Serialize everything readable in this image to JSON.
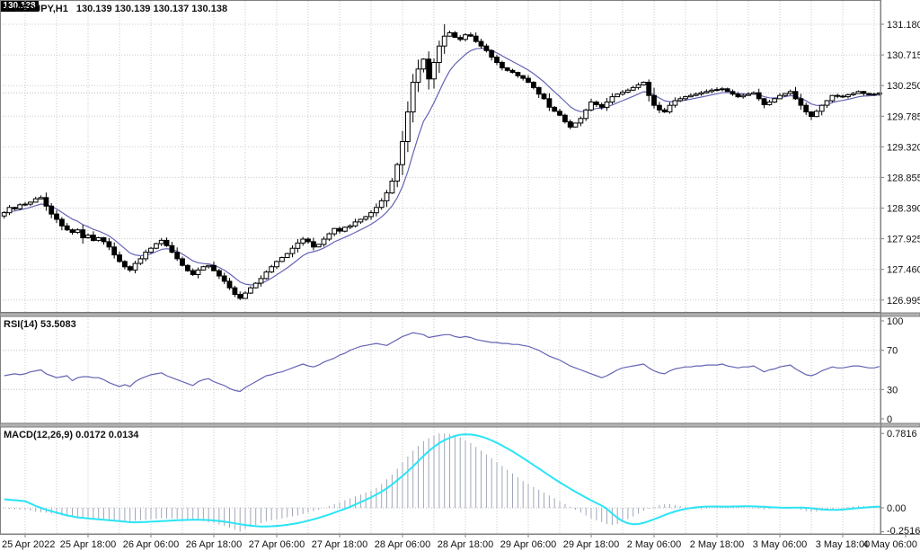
{
  "header": {
    "dropdown_icon": "▼",
    "symbol": "USDJPY,H1",
    "quote": "130.139 130.139 130.137 130.138"
  },
  "indicators": {
    "rsi_label": "RSI(14) 53.5083",
    "macd_label": "MACD(12,26,9) 0.0172 0.0134"
  },
  "price_tag": "130.138",
  "axes": {
    "price_labels": [
      "131.180",
      "130.715",
      "130.250",
      "129.785",
      "129.320",
      "128.855",
      "128.390",
      "127.925",
      "127.460",
      "126.995"
    ],
    "rsi_labels": [
      "100",
      "70",
      "30",
      "0"
    ],
    "macd_labels": [
      "0.7816",
      "0.00",
      "-0.2516"
    ],
    "time_labels": [
      "25 Apr 2022",
      "25 Apr 18:00",
      "26 Apr 06:00",
      "26 Apr 18:00",
      "27 Apr 06:00",
      "27 Apr 18:00",
      "28 Apr 06:00",
      "28 Apr 18:00",
      "29 Apr 06:00",
      "29 Apr 18:00",
      "2 May 06:00",
      "2 May 18:00",
      "3 May 06:00",
      "3 May 18:00",
      "4 May 06:00"
    ]
  },
  "colors": {
    "background": "#ffffff",
    "grid": "#c9c9c9",
    "level_line": "#bdbdbd",
    "frame": "#808080",
    "separator": "#b3b3b3",
    "separator_edge": "#6e6e6e",
    "candle_outline": "#000000",
    "candle_bull": "#ffffff",
    "candle_bear": "#000000",
    "ma_line": "#6464b4",
    "rsi_line": "#6464b4",
    "macd_hist": "#a0a7b8",
    "macd_signal": "#2ae4f5",
    "axis_text": "#111111",
    "tag_bg": "#000000",
    "tag_fg": "#ffffff"
  },
  "chart_data": {
    "type": "candlestick",
    "symbol": "USDJPY",
    "timeframe": "H1",
    "ohlc_current": {
      "open": 130.139,
      "high": 130.139,
      "low": 130.137,
      "close": 130.138
    },
    "current_price": 130.138,
    "price_ticks": [
      131.18,
      130.715,
      130.25,
      129.785,
      129.32,
      128.855,
      128.39,
      127.925,
      127.46,
      126.995
    ],
    "price_range": [
      126.995,
      131.18
    ],
    "time_tick_first_candle": 4,
    "time_tick_candle_interval": 12,
    "closes": [
      128.32,
      128.4,
      128.38,
      128.44,
      128.45,
      128.48,
      128.53,
      128.55,
      128.42,
      128.3,
      128.22,
      128.12,
      128.06,
      128.02,
      128.06,
      127.94,
      127.98,
      127.9,
      127.94,
      127.88,
      127.8,
      127.68,
      127.58,
      127.5,
      127.45,
      127.55,
      127.62,
      127.72,
      127.78,
      127.85,
      127.9,
      127.82,
      127.72,
      127.62,
      127.52,
      127.44,
      127.38,
      127.45,
      127.5,
      127.52,
      127.44,
      127.36,
      127.28,
      127.18,
      127.08,
      127.02,
      127.1,
      127.18,
      127.25,
      127.32,
      127.42,
      127.5,
      127.58,
      127.64,
      127.7,
      127.78,
      127.86,
      127.92,
      127.88,
      127.8,
      127.84,
      127.92,
      128.0,
      128.08,
      128.04,
      128.1,
      128.12,
      128.18,
      128.22,
      128.26,
      128.32,
      128.4,
      128.5,
      128.62,
      128.8,
      129.05,
      129.4,
      129.85,
      130.3,
      130.5,
      130.65,
      130.35,
      130.6,
      130.85,
      131.0,
      131.05,
      130.98,
      130.95,
      131.02,
      131.0,
      130.92,
      130.85,
      130.78,
      130.68,
      130.6,
      130.52,
      130.48,
      130.45,
      130.4,
      130.36,
      130.3,
      130.22,
      130.12,
      130.05,
      129.92,
      129.86,
      129.8,
      129.7,
      129.62,
      129.68,
      129.75,
      129.88,
      130.0,
      129.96,
      129.92,
      130.0,
      130.08,
      130.12,
      130.15,
      130.18,
      130.22,
      130.26,
      130.3,
      130.1,
      129.95,
      129.88,
      129.85,
      129.95,
      130.02,
      130.05,
      130.08,
      130.1,
      130.12,
      130.14,
      130.16,
      130.18,
      130.19,
      130.2,
      130.16,
      130.12,
      130.08,
      130.1,
      130.12,
      130.14,
      130.05,
      129.96,
      130.0,
      130.05,
      130.1,
      130.13,
      130.16,
      130.05,
      129.95,
      129.85,
      129.78,
      129.86,
      129.95,
      130.02,
      130.1,
      130.09,
      130.08,
      130.11,
      130.13,
      130.16,
      130.13,
      130.11,
      130.12,
      130.138
    ],
    "extremes": {
      "high_index": 84,
      "high": 131.18,
      "low_index": 45,
      "low": 126.995
    },
    "ma": {
      "type": "ema",
      "period": 9
    },
    "rsi": {
      "period": 14,
      "current": 53.5083,
      "levels": [
        70,
        30
      ],
      "scale_ticks": [
        100,
        70,
        30,
        0
      ],
      "values": [
        44,
        45,
        46,
        45,
        46,
        48,
        49,
        50,
        46,
        44,
        42,
        43,
        44,
        39,
        42,
        43,
        43,
        42,
        42,
        40,
        37,
        35,
        33,
        35,
        33,
        38,
        41,
        43,
        45,
        46,
        47,
        44,
        42,
        40,
        38,
        36,
        34,
        38,
        40,
        41,
        38,
        36,
        34,
        31,
        29,
        28,
        32,
        35,
        38,
        41,
        44,
        45,
        47,
        48,
        50,
        52,
        54,
        56,
        54,
        53,
        55,
        58,
        60,
        62,
        65,
        67,
        70,
        72,
        74,
        75,
        76,
        77,
        76,
        75,
        78,
        81,
        84,
        86,
        88,
        87,
        86,
        83,
        84,
        85,
        86,
        86,
        84,
        83,
        84,
        83,
        81,
        80,
        79,
        78,
        78,
        77,
        77,
        76,
        76,
        75,
        74,
        72,
        70,
        67,
        64,
        62,
        60,
        57,
        54,
        52,
        50,
        48,
        46,
        44,
        42,
        44,
        47,
        50,
        52,
        53,
        54,
        55,
        56,
        52,
        49,
        47,
        46,
        49,
        51,
        52,
        53,
        53,
        54,
        54,
        55,
        55,
        55,
        56,
        54,
        53,
        52,
        53,
        53,
        54,
        51,
        48,
        50,
        51,
        53,
        54,
        55,
        51,
        48,
        45,
        44,
        46,
        49,
        51,
        53,
        52,
        52,
        53,
        54,
        54,
        53,
        52,
        52,
        53.5
      ]
    },
    "macd": {
      "fast": 12,
      "slow": 26,
      "signal_period": 9,
      "current_main": 0.0172,
      "current_signal": 0.0134,
      "scale_ticks": [
        0.7816,
        0.0,
        -0.2516
      ],
      "main": [
        -0.005,
        -0.01,
        -0.015,
        -0.018,
        -0.02,
        -0.03,
        -0.04,
        -0.045,
        -0.05,
        -0.06,
        -0.07,
        -0.08,
        -0.09,
        -0.095,
        -0.1,
        -0.1,
        -0.1,
        -0.11,
        -0.11,
        -0.115,
        -0.12,
        -0.13,
        -0.135,
        -0.14,
        -0.14,
        -0.135,
        -0.13,
        -0.125,
        -0.12,
        -0.115,
        -0.11,
        -0.11,
        -0.11,
        -0.115,
        -0.12,
        -0.125,
        -0.13,
        -0.135,
        -0.14,
        -0.15,
        -0.16,
        -0.175,
        -0.19,
        -0.21,
        -0.23,
        -0.25,
        -0.22,
        -0.2,
        -0.18,
        -0.16,
        -0.14,
        -0.13,
        -0.12,
        -0.11,
        -0.1,
        -0.09,
        -0.08,
        -0.065,
        -0.05,
        -0.035,
        -0.02,
        0.0,
        0.02,
        0.04,
        0.06,
        0.08,
        0.1,
        0.12,
        0.14,
        0.16,
        0.18,
        0.21,
        0.25,
        0.3,
        0.35,
        0.41,
        0.48,
        0.54,
        0.6,
        0.65,
        0.7,
        0.73,
        0.76,
        0.78,
        0.78,
        0.77,
        0.755,
        0.74,
        0.71,
        0.68,
        0.64,
        0.6,
        0.56,
        0.52,
        0.48,
        0.44,
        0.4,
        0.36,
        0.32,
        0.28,
        0.25,
        0.22,
        0.19,
        0.16,
        0.13,
        0.1,
        0.07,
        0.04,
        0.01,
        -0.02,
        -0.05,
        -0.08,
        -0.11,
        -0.13,
        -0.15,
        -0.17,
        -0.18,
        -0.17,
        -0.15,
        -0.12,
        -0.09,
        -0.06,
        -0.03,
        -0.01,
        0.01,
        0.03,
        0.04,
        0.04,
        0.03,
        0.02,
        0.01,
        0.0,
        -0.01,
        -0.015,
        -0.01,
        0.0,
        0.01,
        0.015,
        0.02,
        0.015,
        0.01,
        0.005,
        0.0,
        -0.005,
        -0.01,
        -0.015,
        -0.01,
        0.0,
        0.005,
        0.01,
        0.005,
        -0.005,
        -0.02,
        -0.035,
        -0.045,
        -0.04,
        -0.03,
        -0.02,
        -0.01,
        0.0,
        0.005,
        0.01,
        0.015,
        0.02,
        0.02,
        0.02,
        0.018,
        0.0172
      ],
      "signal": [
        0.09,
        0.085,
        0.08,
        0.075,
        0.07,
        0.045,
        0.02,
        0.0,
        -0.02,
        -0.035,
        -0.05,
        -0.065,
        -0.08,
        -0.09,
        -0.1,
        -0.105,
        -0.11,
        -0.115,
        -0.12,
        -0.125,
        -0.13,
        -0.135,
        -0.14,
        -0.145,
        -0.15,
        -0.152,
        -0.15,
        -0.148,
        -0.145,
        -0.142,
        -0.14,
        -0.137,
        -0.133,
        -0.13,
        -0.128,
        -0.126,
        -0.125,
        -0.125,
        -0.126,
        -0.128,
        -0.132,
        -0.138,
        -0.145,
        -0.153,
        -0.162,
        -0.172,
        -0.18,
        -0.187,
        -0.192,
        -0.195,
        -0.195,
        -0.193,
        -0.19,
        -0.185,
        -0.178,
        -0.17,
        -0.16,
        -0.148,
        -0.135,
        -0.12,
        -0.105,
        -0.088,
        -0.07,
        -0.05,
        -0.03,
        -0.01,
        0.01,
        0.035,
        0.06,
        0.085,
        0.11,
        0.14,
        0.17,
        0.205,
        0.245,
        0.29,
        0.335,
        0.385,
        0.435,
        0.49,
        0.545,
        0.595,
        0.64,
        0.68,
        0.71,
        0.735,
        0.755,
        0.768,
        0.772,
        0.77,
        0.762,
        0.748,
        0.73,
        0.708,
        0.682,
        0.654,
        0.624,
        0.592,
        0.558,
        0.523,
        0.487,
        0.45,
        0.413,
        0.376,
        0.339,
        0.303,
        0.268,
        0.234,
        0.201,
        0.169,
        0.138,
        0.108,
        0.079,
        0.051,
        0.024,
        -0.01,
        -0.06,
        -0.105,
        -0.14,
        -0.162,
        -0.172,
        -0.17,
        -0.158,
        -0.14,
        -0.12,
        -0.098,
        -0.076,
        -0.056,
        -0.038,
        -0.023,
        -0.011,
        -0.002,
        0.005,
        0.01,
        0.013,
        0.014,
        0.014,
        0.013,
        0.013,
        0.014,
        0.015,
        0.016,
        0.016,
        0.015,
        0.013,
        0.011,
        0.008,
        0.005,
        0.002,
        0.001,
        0.001,
        0.002,
        0.002,
        0.0,
        -0.004,
        -0.01,
        -0.016,
        -0.02,
        -0.022,
        -0.021,
        -0.018,
        -0.013,
        -0.008,
        -0.003,
        0.002,
        0.006,
        0.01,
        0.0134
      ]
    }
  }
}
